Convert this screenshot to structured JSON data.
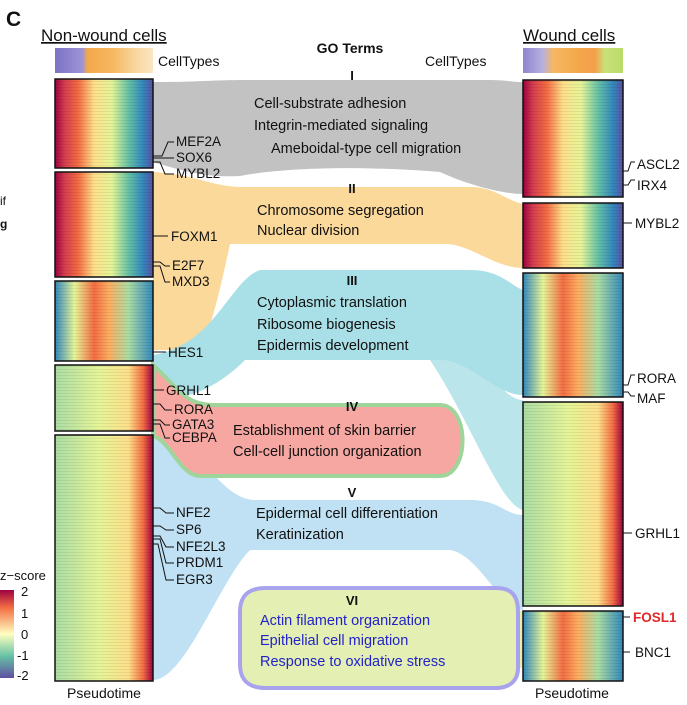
{
  "panel_label": "C",
  "headers": {
    "left": "Non-wound cells",
    "right": "Wound cells",
    "center": "GO Terms"
  },
  "celltypes_label": "CellTypes",
  "cut_labels": [
    "if",
    "g"
  ],
  "zscore": {
    "title": "z−score",
    "ticks": [
      "2",
      "1",
      "0",
      "-1",
      "-2"
    ]
  },
  "pseudotime_label": "Pseudotime",
  "left_genes": [
    "MEF2A",
    "SOX6",
    "MYBL2",
    "FOXM1",
    "E2F7",
    "MXD3",
    "HES1",
    "GRHL1",
    "RORA",
    "GATA3",
    "CEBPA",
    "NFE2",
    "SP6",
    "NFE2L3",
    "PRDM1",
    "EGR3"
  ],
  "right_genes": [
    "ASCL2",
    "IRX4",
    "MYBL2",
    "RORA",
    "MAF",
    "GRHL1",
    "FOSL1",
    "BNC1"
  ],
  "highlight_gene": "FOSL1",
  "go_groups": [
    {
      "numeral": "I",
      "terms": [
        "Cell-substrate adhesion",
        "Integrin-mediated signaling",
        "Ameboidal-type cell migration"
      ]
    },
    {
      "numeral": "II",
      "terms": [
        "Chromosome segregation",
        "Nuclear division"
      ]
    },
    {
      "numeral": "III",
      "terms": [
        "Cytoplasmic translation",
        "Ribosome biogenesis",
        "Epidermis development"
      ]
    },
    {
      "numeral": "IV",
      "terms": [
        "Establishment of skin barrier",
        "Cell-cell junction organization"
      ]
    },
    {
      "numeral": "V",
      "terms": [
        "Epidermal cell differentiation",
        "Keratinization"
      ]
    },
    {
      "numeral": "VI",
      "terms": [
        "Actin filament organization",
        "Epithelial cell migration",
        "Response to oxidative stress"
      ]
    }
  ],
  "colors": {
    "group_I": "#c2c2c2",
    "group_II": "#fbd99a",
    "group_III": "#a9dfe6",
    "group_IV": "#f7a7a1",
    "group_IV_border": "#9fd49a",
    "group_V": "#bfe1f3",
    "group_VI": "#e3efb3",
    "group_VI_border": "#a9a3ee",
    "group_VI_text": "#2323c8",
    "highlight": "#e02828"
  }
}
